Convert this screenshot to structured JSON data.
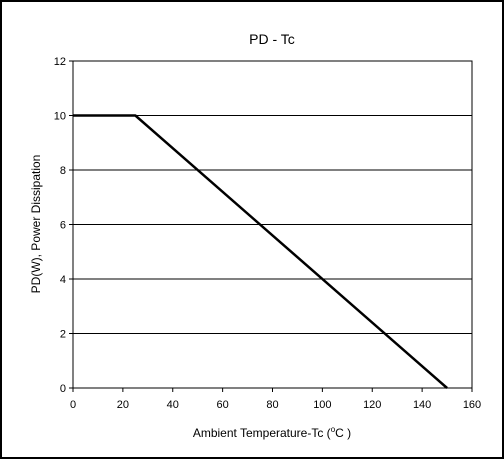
{
  "chart_data": {
    "type": "line",
    "title": "PD - Tc",
    "xlabel_main": "Ambient Temperature-Tc (",
    "xlabel_sup": "o",
    "xlabel_tail": "C )",
    "ylabel": "PD(W), Power Dissipation",
    "xlim": [
      0,
      160
    ],
    "ylim": [
      0,
      12
    ],
    "x_ticks": [
      0,
      20,
      40,
      60,
      80,
      100,
      120,
      140,
      160
    ],
    "y_ticks": [
      0,
      2,
      4,
      6,
      8,
      10,
      12
    ],
    "grid": "horizontal",
    "legend": "none",
    "series": [
      {
        "x": [
          0,
          25,
          150
        ],
        "y": [
          10,
          10,
          0
        ]
      }
    ],
    "colors": {
      "line": "#000000",
      "grid": "#000000",
      "frame": "#000000"
    }
  }
}
